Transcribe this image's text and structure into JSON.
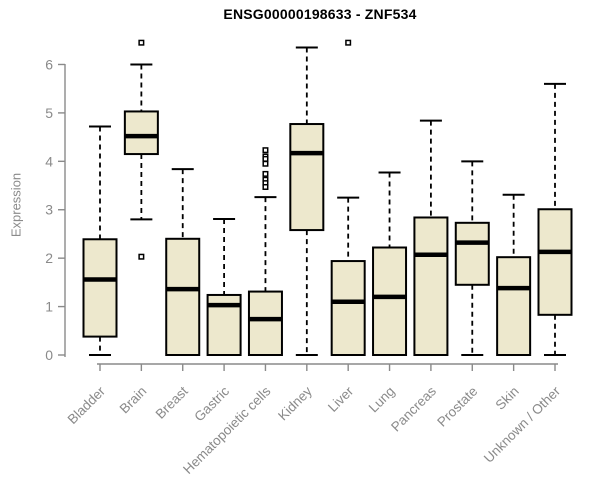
{
  "title": "ENSG00000198633 - ZNF534",
  "colors": {
    "box_fill": "#EDE8CD",
    "box_border": "#000000",
    "median": "#000000",
    "whisker": "#000000",
    "axis": "#8a8a8a",
    "tick_label": "#8a8a8a",
    "title_color": "#000000",
    "background": "#ffffff"
  },
  "chart_data": {
    "type": "boxplot",
    "title": "ENSG00000198633 - ZNF534",
    "xlabel": "",
    "ylabel": "Expression",
    "ylim": [
      0,
      6.7
    ],
    "yticks": [
      0,
      1,
      2,
      3,
      4,
      5,
      6
    ],
    "grid": false,
    "legend": null,
    "categories": [
      "Bladder",
      "Brain",
      "Breast",
      "Gastric",
      "Hematopoietic cells",
      "Kidney",
      "Liver",
      "Lung",
      "Pancreas",
      "Prostate",
      "Skin",
      "Unknown / Other"
    ],
    "boxes": [
      {
        "category": "Bladder",
        "low": 0,
        "q1": 0.38,
        "median": 1.56,
        "q3": 2.39,
        "high": 4.72,
        "outliers": []
      },
      {
        "category": "Brain",
        "low": 2.8,
        "q1": 4.15,
        "median": 4.52,
        "q3": 5.03,
        "high": 6.0,
        "outliers": [
          6.45,
          2.03
        ]
      },
      {
        "category": "Breast",
        "low": 0,
        "q1": 0,
        "median": 1.36,
        "q3": 2.4,
        "high": 3.84,
        "outliers": []
      },
      {
        "category": "Gastric",
        "low": 0,
        "q1": 0,
        "median": 1.03,
        "q3": 1.24,
        "high": 2.81,
        "outliers": []
      },
      {
        "category": "Hematopoietic cells",
        "low": 0,
        "q1": 0,
        "median": 0.74,
        "q3": 1.31,
        "high": 3.26,
        "outliers": [
          4.23,
          4.1,
          4.05,
          3.95,
          3.74,
          3.62,
          3.55,
          3.47
        ]
      },
      {
        "category": "Kidney",
        "low": 0,
        "q1": 2.58,
        "median": 4.17,
        "q3": 4.77,
        "high": 6.35,
        "outliers": []
      },
      {
        "category": "Liver",
        "low": 0,
        "q1": 0,
        "median": 1.1,
        "q3": 1.94,
        "high": 3.25,
        "outliers": [
          6.45
        ]
      },
      {
        "category": "Lung",
        "low": 0,
        "q1": 0,
        "median": 1.2,
        "q3": 2.22,
        "high": 3.77,
        "outliers": []
      },
      {
        "category": "Pancreas",
        "low": 0,
        "q1": 0,
        "median": 2.07,
        "q3": 2.84,
        "high": 4.84,
        "outliers": []
      },
      {
        "category": "Prostate",
        "low": 0,
        "q1": 1.45,
        "median": 2.32,
        "q3": 2.73,
        "high": 4.0,
        "outliers": []
      },
      {
        "category": "Skin",
        "low": 0,
        "q1": 0,
        "median": 1.38,
        "q3": 2.02,
        "high": 3.31,
        "outliers": []
      },
      {
        "category": "Unknown / Other",
        "low": 0,
        "q1": 0.83,
        "median": 2.13,
        "q3": 3.01,
        "high": 5.6,
        "outliers": []
      }
    ]
  }
}
